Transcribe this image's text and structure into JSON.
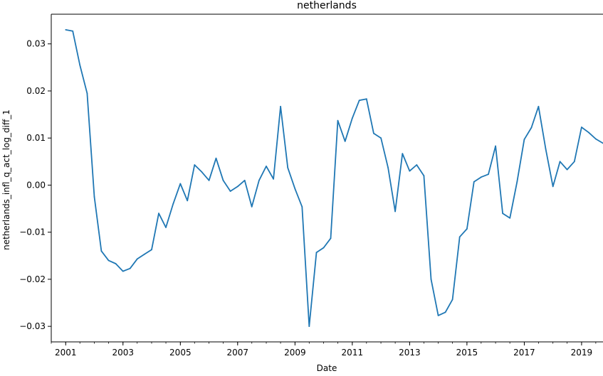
{
  "chart_data": {
    "type": "line",
    "title": "netherlands",
    "xlabel": "Date",
    "ylabel": "netherlands_infl_q_act_log_diff_1",
    "xlim": [
      "2000-07-01",
      "2019-10-01"
    ],
    "ylim": [
      -0.0333,
      0.0363
    ],
    "x_major_ticks": [
      "2001-01-01",
      "2003-01-01",
      "2005-01-01",
      "2007-01-01",
      "2009-01-01",
      "2011-01-01",
      "2013-01-01",
      "2015-01-01",
      "2017-01-01",
      "2019-01-01"
    ],
    "x_tick_labels": [
      "2001",
      "2003",
      "2005",
      "2007",
      "2009",
      "2011",
      "2013",
      "2015",
      "2017",
      "2019"
    ],
    "y_ticks": [
      -0.03,
      -0.02,
      -0.01,
      0.0,
      0.01,
      0.02,
      0.03
    ],
    "y_tick_labels": [
      "−0.03",
      "−0.02",
      "−0.01",
      "0.00",
      "0.01",
      "0.02",
      "0.03"
    ],
    "grid": false,
    "series": [
      {
        "color": "#1f77b4",
        "x": [
          "2001-01-01",
          "2001-04-01",
          "2001-07-01",
          "2001-10-01",
          "2002-01-01",
          "2002-04-01",
          "2002-07-01",
          "2002-10-01",
          "2003-01-01",
          "2003-04-01",
          "2003-07-01",
          "2003-10-01",
          "2004-01-01",
          "2004-04-01",
          "2004-07-01",
          "2004-10-01",
          "2005-01-01",
          "2005-04-01",
          "2005-07-01",
          "2005-10-01",
          "2006-01-01",
          "2006-04-01",
          "2006-07-01",
          "2006-10-01",
          "2007-01-01",
          "2007-04-01",
          "2007-07-01",
          "2007-10-01",
          "2008-01-01",
          "2008-04-01",
          "2008-07-01",
          "2008-10-01",
          "2009-01-01",
          "2009-04-01",
          "2009-07-01",
          "2009-10-01",
          "2010-01-01",
          "2010-04-01",
          "2010-07-01",
          "2010-10-01",
          "2011-01-01",
          "2011-04-01",
          "2011-07-01",
          "2011-10-01",
          "2012-01-01",
          "2012-04-01",
          "2012-07-01",
          "2012-10-01",
          "2013-01-01",
          "2013-04-01",
          "2013-07-01",
          "2013-10-01",
          "2014-01-01",
          "2014-04-01",
          "2014-07-01",
          "2014-10-01",
          "2015-01-01",
          "2015-04-01",
          "2015-07-01",
          "2015-10-01",
          "2016-01-01",
          "2016-04-01",
          "2016-07-01",
          "2016-10-01",
          "2017-01-01",
          "2017-04-01",
          "2017-07-01",
          "2017-10-01",
          "2018-01-01",
          "2018-04-01",
          "2018-07-01",
          "2018-10-01",
          "2019-01-01",
          "2019-04-01",
          "2019-07-01",
          "2019-10-01"
        ],
        "y": [
          0.033,
          0.0327,
          0.0255,
          0.0195,
          -0.0025,
          -0.014,
          -0.016,
          -0.0167,
          -0.0183,
          -0.0177,
          -0.0157,
          -0.0147,
          -0.0137,
          -0.006,
          -0.009,
          -0.004,
          0.0003,
          -0.0033,
          0.0043,
          0.0028,
          0.001,
          0.0057,
          0.001,
          -0.0013,
          -0.0003,
          0.001,
          -0.0046,
          0.001,
          0.004,
          0.0013,
          0.0167,
          0.0037,
          -0.0008,
          -0.0046,
          -0.03,
          -0.0143,
          -0.0133,
          -0.0113,
          0.0137,
          0.0093,
          0.0142,
          0.018,
          0.0183,
          0.011,
          0.01,
          0.0037,
          -0.0056,
          0.0067,
          0.003,
          0.0043,
          0.002,
          -0.02,
          -0.0277,
          -0.027,
          -0.0243,
          -0.011,
          -0.0093,
          0.0007,
          0.0017,
          0.0023,
          0.0083,
          -0.006,
          -0.007,
          0.0007,
          0.0097,
          0.0122,
          0.0167,
          0.0077,
          -0.0003,
          0.005,
          0.0033,
          0.005,
          0.0123,
          0.0112,
          0.0098,
          0.0089
        ]
      }
    ]
  }
}
